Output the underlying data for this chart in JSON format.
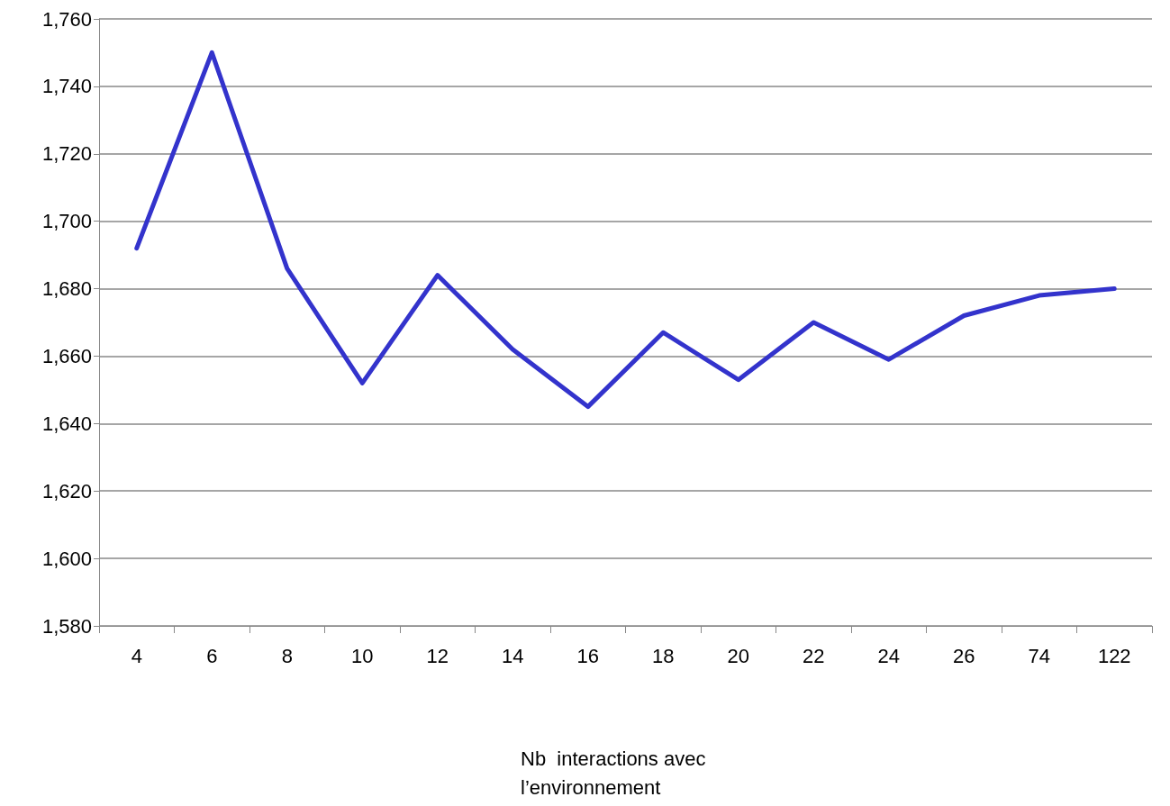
{
  "chart_data": {
    "type": "line",
    "xlabel": "Nb  interactions avec l’environnement",
    "categories": [
      "4",
      "6",
      "8",
      "10",
      "12",
      "14",
      "16",
      "18",
      "20",
      "22",
      "24",
      "26",
      "74",
      "122"
    ],
    "series": [
      {
        "color": "#3333cc",
        "values": [
          1692,
          1750,
          1686,
          1652,
          1684,
          1662,
          1645,
          1667,
          1653,
          1670,
          1659,
          1672,
          1678,
          1680
        ]
      }
    ],
    "ylim": [
      1580,
      1760
    ],
    "yticks": [
      {
        "value": 1580,
        "label": "1,580"
      },
      {
        "value": 1600,
        "label": "1,600"
      },
      {
        "value": 1620,
        "label": "1,620"
      },
      {
        "value": 1640,
        "label": "1,640"
      },
      {
        "value": 1660,
        "label": "1,660"
      },
      {
        "value": 1680,
        "label": "1,680"
      },
      {
        "value": 1700,
        "label": "1,700"
      },
      {
        "value": 1720,
        "label": "1,720"
      },
      {
        "value": 1740,
        "label": "1,740"
      },
      {
        "value": 1760,
        "label": "1,760"
      }
    ],
    "grid": "y",
    "marker": "none",
    "line_style": "solid"
  }
}
